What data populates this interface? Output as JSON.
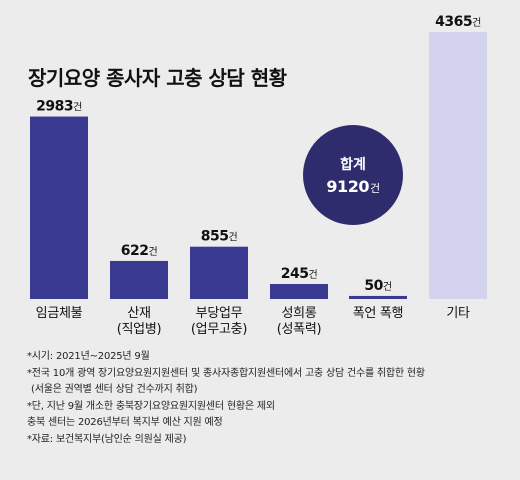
{
  "title": "장기요양 종사자 고충 상담 현황",
  "total": {
    "label": "합계",
    "value": "9120",
    "unit": "건"
  },
  "colors": {
    "bar_main": "#3a3a92",
    "bar_other": "#d3d3ee",
    "badge": "#2e2c6d",
    "background": "#ececec"
  },
  "chart_data": {
    "type": "bar",
    "title": "장기요양 종사자 고충 상담 현황",
    "categories": [
      [
        "임금체불"
      ],
      [
        "산재",
        "(직업병)"
      ],
      [
        "부당업무",
        "(업무고충)"
      ],
      [
        "성희롱",
        "(성폭력)"
      ],
      [
        "폭언 폭행"
      ],
      [
        "기타"
      ]
    ],
    "values": [
      2983,
      622,
      855,
      245,
      50,
      4365
    ],
    "value_labels": [
      "2983",
      "622",
      "855",
      "245",
      "50",
      "4365"
    ],
    "unit": "건",
    "bar_colors": [
      "#3a3a92",
      "#3a3a92",
      "#3a3a92",
      "#3a3a92",
      "#3a3a92",
      "#d3d3ee"
    ],
    "ylim": [
      0,
      4365
    ],
    "grid": false,
    "xlabel": "",
    "ylabel": ""
  },
  "notes": [
    "*시기: 2021년~2025년 9월",
    "*전국 10개 광역 장기요양요원지원센터 및 종사자종합지원센터에서 고충 상담 건수를 취합한 현황",
    "(서울은 권역별 센터 상담 건수까지 취합)",
    "*단, 지난 9월 개소한 충북장기요양요원지원센터 현황은 제외",
    "충북 센터는 2026년부터 복지부 예산 지원 예정",
    "*자료: 보건복지부(남인순 의원실 제공)"
  ]
}
